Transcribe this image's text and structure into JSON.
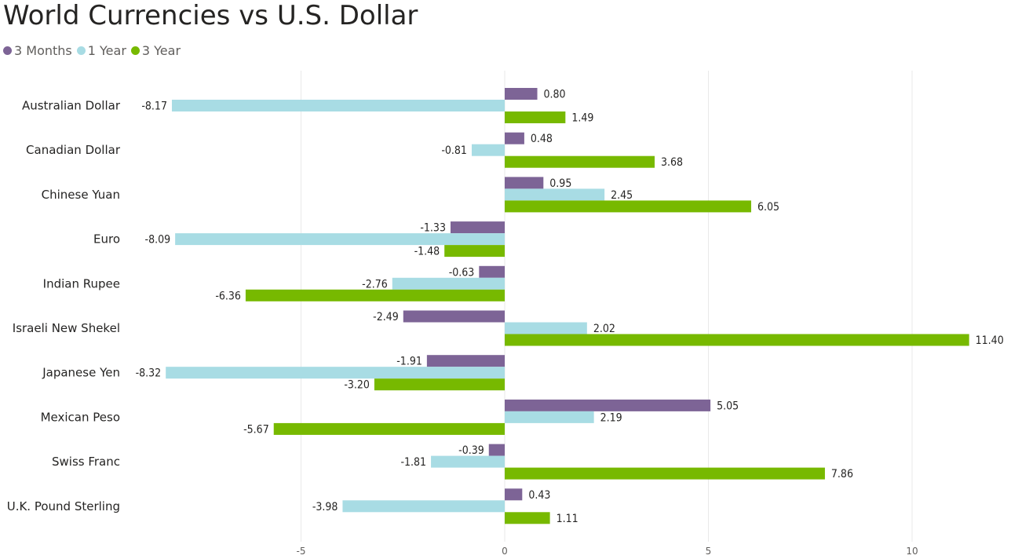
{
  "chart_data": {
    "type": "bar",
    "orientation": "horizontal",
    "title": "World Currencies vs U.S. Dollar",
    "categories": [
      "Australian Dollar",
      "Canadian Dollar",
      "Chinese Yuan",
      "Euro",
      "Indian Rupee",
      "Israeli New Shekel",
      "Japanese Yen",
      "Mexican Peso",
      "Swiss Franc",
      "U.K. Pound Sterling"
    ],
    "series": [
      {
        "name": "3 Months",
        "color": "#7d6496",
        "values": [
          0.8,
          0.48,
          0.95,
          -1.33,
          -0.63,
          -2.49,
          -1.91,
          5.05,
          -0.39,
          0.43
        ],
        "labels": [
          "0.80",
          "0.48",
          "0.95",
          "-1.33",
          "-0.63",
          "-2.49",
          "-1.91",
          "5.05",
          "-0.39",
          "0.43"
        ]
      },
      {
        "name": "1 Year",
        "color": "#a8dce4",
        "values": [
          -8.17,
          -0.81,
          2.45,
          -8.09,
          -2.76,
          2.02,
          -8.32,
          2.19,
          -1.81,
          -3.98
        ],
        "labels": [
          "-8.17",
          "-0.81",
          "2.45",
          "-8.09",
          "-2.76",
          "2.02",
          "-8.32",
          "2.19",
          "-1.81",
          "-3.98"
        ]
      },
      {
        "name": "3 Year",
        "color": "#77b900",
        "values": [
          1.49,
          3.68,
          6.05,
          -1.48,
          -6.36,
          11.4,
          -3.2,
          -5.67,
          7.86,
          1.11
        ],
        "labels": [
          "1.49",
          "3.68",
          "6.05",
          "-1.48",
          "-6.36",
          "11.40",
          "-3.20",
          "-5.67",
          "7.86",
          "1.11"
        ]
      }
    ],
    "xlim": [
      -10,
      12
    ],
    "xticks": [
      -5,
      0,
      5,
      10
    ],
    "xtick_labels": [
      "-5",
      "0",
      "5",
      "10"
    ],
    "grid": true,
    "legend": "top-left"
  }
}
